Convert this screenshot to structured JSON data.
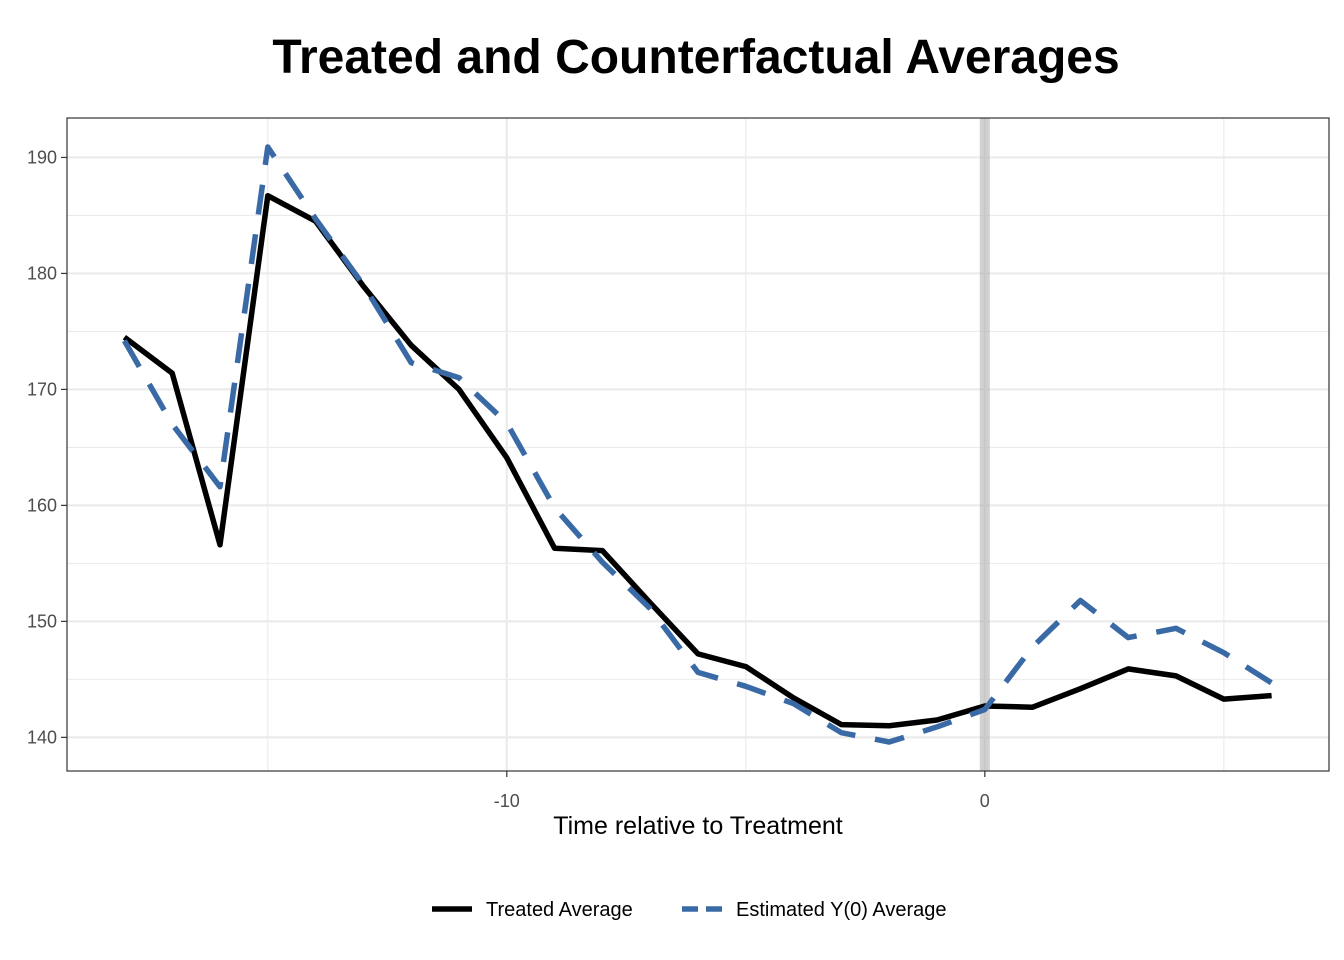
{
  "chart_data": {
    "type": "line",
    "title": "Treated and Counterfactual Averages",
    "xlabel": "Time relative to Treatment",
    "ylabel": "",
    "x": [
      -18,
      -17,
      -16,
      -15,
      -14,
      -13,
      -12,
      -11,
      -10,
      -9,
      -8,
      -7,
      -6,
      -5,
      -4,
      -3,
      -2,
      -1,
      0,
      1,
      2,
      3,
      4,
      5,
      6
    ],
    "series": [
      {
        "name": "Treated Average",
        "color": "#000000",
        "dash": "solid",
        "values": [
          174.5,
          171.4,
          156.6,
          186.7,
          184.5,
          178.9,
          173.8,
          170.0,
          164.1,
          156.3,
          156.1,
          151.6,
          147.2,
          146.1,
          143.4,
          141.1,
          141.0,
          141.5,
          142.7,
          142.6,
          144.2,
          145.9,
          145.3,
          143.3,
          143.6
        ]
      },
      {
        "name": "Estimated Y(0) Average",
        "color": "#3a6aa6",
        "dash": "dashed",
        "values": [
          174.2,
          167.0,
          161.6,
          190.9,
          184.7,
          179.0,
          172.3,
          171.0,
          167.1,
          159.8,
          155.1,
          151.1,
          145.6,
          144.4,
          142.9,
          140.4,
          139.6,
          140.9,
          142.4,
          147.8,
          151.8,
          148.6,
          149.4,
          147.3,
          144.7
        ]
      }
    ],
    "xlim": [
      -19.2,
      7.2
    ],
    "ylim": [
      137.1,
      193.4
    ],
    "xticks": [
      -10,
      0
    ],
    "yticks": [
      140,
      150,
      160,
      170,
      180,
      190
    ],
    "vline": 0,
    "grid": true,
    "legend": "bottom"
  }
}
